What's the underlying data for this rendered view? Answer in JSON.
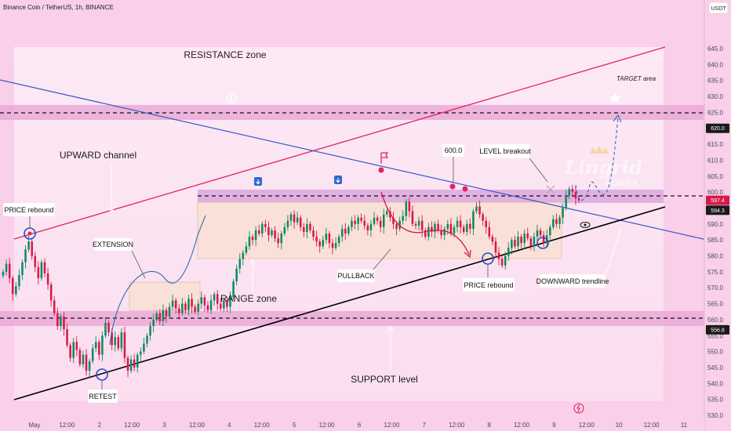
{
  "header": {
    "symbol_line": "Binance Coin / TetherUS, 1h, BINANCE",
    "currency_badge": "USDT"
  },
  "watermark": {
    "line1": "Lingrid",
    "line2": "FOREX"
  },
  "colors": {
    "background": "#f9cfe9",
    "band": "#e9a9d6",
    "range_box": "#f9e1d6",
    "candle_up": "#0f8a5f",
    "candle_down": "#d8174a",
    "channel_red": "#e0245e",
    "trend_blue": "#3b5bc9",
    "support_black": "#000000",
    "curve_blue": "#2c6fb5",
    "curve_red": "#d8174a"
  },
  "annotations": {
    "resistance": "RESISTANCE zone",
    "upward_channel": "UPWARD channel",
    "range_zone": "RANGE zone",
    "support_level": "SUPPORT level",
    "target_area": "TARGET area",
    "price_rebound_left": "PRICE rebound",
    "extension": "EXTENSION",
    "retest": "RETEST",
    "pullback": "PULLBACK",
    "price_rebound_right": "PRICE rebound",
    "level_breakout": "LEVEL breakout",
    "downward_trendline": "DOWNWARD trendline",
    "marker_600": "600.0"
  },
  "chart_data": {
    "type": "candlestick",
    "title": "Binance Coin / TetherUS, 1h, BINANCE",
    "ylabel": "USDT",
    "ylim": [
      527.2,
      651.8
    ],
    "y_ticks": [
      530.0,
      535.0,
      540.0,
      545.0,
      550.0,
      555.0,
      560.0,
      565.0,
      570.0,
      575.0,
      580.0,
      585.0,
      590.0,
      595.0,
      600.0,
      605.0,
      610.0,
      615.0,
      620.0,
      625.0,
      630.0,
      635.0,
      640.0,
      645.0
    ],
    "x_ticks": [
      "May",
      "12:00",
      "2",
      "12:00",
      "3",
      "12:00",
      "4",
      "12:00",
      "5",
      "12:00",
      "6",
      "12:00",
      "7",
      "12:00",
      "8",
      "12:00",
      "9",
      "12:00",
      "10",
      "12:00",
      "11"
    ],
    "price_tags": [
      {
        "value": 620.0,
        "label": "620.0",
        "color": "#1a1a1a"
      },
      {
        "value": 597.4,
        "label": "597.4",
        "color": "#d8174a"
      },
      {
        "value": 594.3,
        "label": "594.3",
        "color": "#1a1a1a"
      },
      {
        "value": 556.8,
        "label": "556.8",
        "color": "#1a1a1a"
      }
    ],
    "levels": {
      "resistance_line": 620.0,
      "range_top": 594.3,
      "support_line": 556.8
    },
    "key_points": [
      {
        "label": "PRICE rebound",
        "price": 585.5
      },
      {
        "label": "RETEST",
        "price": 540.0
      },
      {
        "label": "600.0",
        "price": 600.0
      },
      {
        "label": "PRICE rebound",
        "price": 576.0
      },
      {
        "label": "PRICE rebound",
        "price": 580.5
      }
    ],
    "closes": [
      575.0,
      577.5,
      573.0,
      568.0,
      570.5,
      574.0,
      578.0,
      582.0,
      584.5,
      580.0,
      576.5,
      573.0,
      578.0,
      574.5,
      571.0,
      566.0,
      562.0,
      558.0,
      561.0,
      557.0,
      552.0,
      548.0,
      553.0,
      550.5,
      546.0,
      549.0,
      544.0,
      547.0,
      551.0,
      553.0,
      549.0,
      555.0,
      559.0,
      556.0,
      552.0,
      554.5,
      551.0,
      556.0,
      548.0,
      544.0,
      547.5,
      545.0,
      549.0,
      550.0,
      552.5,
      555.0,
      558.0,
      560.0,
      562.0,
      559.5,
      563.0,
      561.0,
      564.0,
      566.0,
      563.5,
      562.0,
      565.0,
      563.0,
      566.5,
      564.0,
      562.5,
      565.0,
      567.0,
      564.5,
      563.0,
      566.0,
      568.0,
      565.0,
      563.5,
      566.0,
      564.0,
      567.0,
      572.0,
      576.0,
      579.0,
      581.0,
      583.0,
      586.0,
      585.0,
      588.0,
      587.0,
      590.0,
      589.0,
      586.5,
      588.0,
      585.5,
      584.0,
      587.0,
      589.0,
      591.0,
      593.0,
      590.5,
      592.0,
      589.0,
      587.5,
      590.0,
      588.0,
      586.0,
      584.5,
      583.0,
      585.0,
      587.0,
      584.0,
      582.5,
      584.0,
      586.0,
      588.5,
      587.0,
      589.0,
      591.0,
      590.0,
      592.0,
      591.0,
      589.5,
      588.0,
      590.0,
      592.0,
      591.0,
      589.0,
      593.0,
      594.0,
      592.0,
      590.0,
      588.5,
      591.0,
      592.5,
      597.0,
      594.0,
      590.0,
      589.5,
      591.0,
      588.0,
      586.0,
      589.0,
      587.5,
      590.0,
      588.0,
      586.5,
      588.5,
      590.0,
      587.0,
      589.0,
      591.0,
      589.0,
      587.5,
      590.0,
      588.5,
      594.0,
      595.5,
      593.0,
      591.0,
      589.0,
      586.0,
      584.5,
      581.0,
      579.0,
      577.0,
      580.0,
      582.5,
      585.0,
      583.0,
      586.0,
      584.0,
      587.0,
      585.5,
      583.0,
      586.0,
      588.0,
      586.5,
      584.0,
      586.5,
      589.0,
      591.5,
      590.0,
      592.0,
      595.0,
      599.0,
      601.0,
      600.0,
      598.0,
      597.4
    ]
  }
}
